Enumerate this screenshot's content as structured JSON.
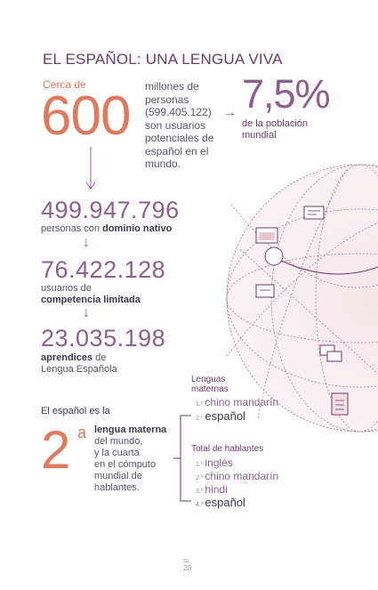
{
  "title": "EL ESPAÑOL: UNA LENGUA VIVA",
  "hero": {
    "prefix": "Cerca de",
    "number": "600",
    "lines": [
      "millones de",
      "personas",
      "(599.405.122)",
      "son usuarios",
      "potenciales de",
      "español en el",
      "mundo."
    ]
  },
  "percent": {
    "value": "7,5%",
    "lines": [
      "de la población",
      "mundial"
    ]
  },
  "stats": [
    {
      "number": "499.947.796",
      "label_plain": "personas con ",
      "label_bold": "dominio nativo"
    },
    {
      "number": "76.422.128",
      "label_plain": "usuarios de",
      "label_bold": "competencia limitada"
    },
    {
      "number": "23.035.198",
      "label_bold": "aprendices",
      "label_plain": " de",
      "label_plain2": "Lengua Española"
    }
  ],
  "ranking": {
    "intro": "El español es la",
    "position": "2",
    "suffix": "a",
    "lines_bold": "lengua materna",
    "lines": [
      "del mundo,",
      "y la cuarta",
      "en el cómputo",
      "mundial de",
      "hablantes."
    ]
  },
  "native_list": {
    "heading": [
      "Lenguas",
      "maternas"
    ],
    "items": [
      {
        "ord": "1.º",
        "name": "chino mandarín"
      },
      {
        "ord": "2.º",
        "name": "español"
      }
    ]
  },
  "speakers_list": {
    "heading": "Total de hablantes",
    "items": [
      {
        "ord": "1.º",
        "name": "inglés"
      },
      {
        "ord": "2.º",
        "name": "chino mandarín"
      },
      {
        "ord": "3.º",
        "name": "hindi"
      },
      {
        "ord": "4.º",
        "name": "español"
      }
    ]
  },
  "footer": {
    "glyph": "≈",
    "page": "20"
  },
  "colors": {
    "accent_orange": "#e07a5f",
    "accent_purple": "#8e5e8e",
    "title_purple": "#6b3a6e"
  }
}
